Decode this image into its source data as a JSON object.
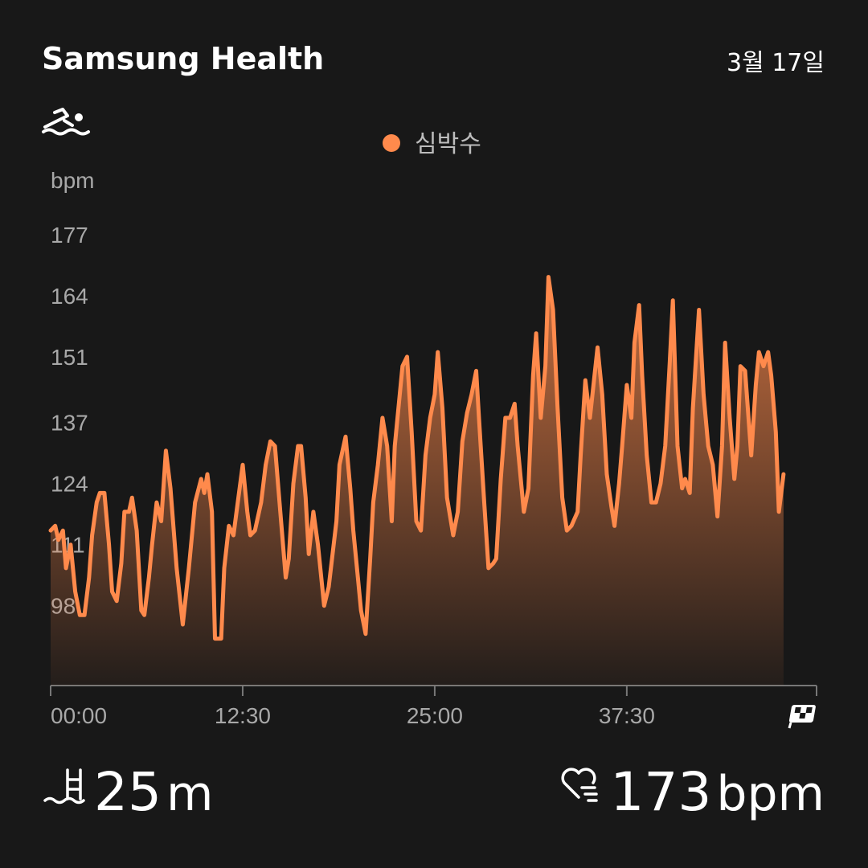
{
  "header": {
    "title": "Samsung Health",
    "date": "3월 17일"
  },
  "chart_data": {
    "type": "line",
    "ylabel": "bpm",
    "x": [
      0.0,
      0.3,
      0.5,
      0.8,
      1.0,
      1.3,
      1.6,
      1.9,
      2.2,
      2.5,
      2.7,
      3.0,
      3.2,
      3.5,
      3.8,
      4.0,
      4.3,
      4.6,
      4.8,
      5.1,
      5.3,
      5.6,
      5.9,
      6.1,
      6.4,
      6.6,
      6.9,
      7.2,
      7.5,
      7.8,
      8.2,
      8.6,
      9.0,
      9.4,
      9.8,
      10.0,
      10.2,
      10.5,
      10.7,
      11.1,
      11.3,
      11.6,
      11.9,
      12.1,
      12.5,
      12.8,
      13.0,
      13.3,
      13.7,
      14.0,
      14.3,
      14.6,
      14.9,
      15.3,
      15.5,
      15.8,
      16.1,
      16.3,
      16.6,
      16.8,
      17.1,
      17.4,
      17.8,
      18.1,
      18.6,
      18.8,
      19.2,
      19.5,
      19.7,
      20.0,
      20.2,
      20.5,
      20.8,
      21.0,
      21.3,
      21.6,
      21.9,
      22.2,
      22.4,
      22.9,
      23.2,
      23.5,
      23.8,
      24.1,
      24.4,
      24.7,
      25.0,
      25.2,
      25.5,
      25.8,
      26.2,
      26.5,
      26.8,
      27.1,
      27.4,
      27.7,
      27.9,
      28.2,
      28.5,
      28.8,
      29.0,
      29.3,
      29.6,
      29.9,
      30.2,
      30.4,
      30.8,
      31.1,
      31.4,
      31.6,
      31.9,
      32.2,
      32.4,
      32.7,
      33.0,
      33.3,
      33.6,
      33.9,
      34.3,
      34.5,
      34.8,
      35.1,
      35.4,
      35.6,
      35.9,
      36.2,
      36.5,
      36.7,
      37.0,
      37.2,
      37.5,
      37.8,
      38.0,
      38.3,
      38.5,
      38.8,
      39.1,
      39.4,
      39.7,
      40.0,
      40.3,
      40.5,
      40.8,
      41.1,
      41.3,
      41.6,
      41.8,
      42.2,
      42.5,
      42.8,
      43.1,
      43.4,
      43.7,
      43.9,
      44.2,
      44.5,
      44.7,
      44.9,
      45.2,
      45.6,
      45.9,
      46.1,
      46.4,
      46.7,
      46.9,
      47.2,
      47.4,
      47.7
    ],
    "series": [
      {
        "name": "심박수",
        "color": "#ff8a4c",
        "values": [
          114,
          115,
          112,
          114,
          106,
          111,
          101,
          96,
          96,
          104,
          113,
          120,
          122,
          122,
          111,
          101,
          99,
          107,
          118,
          118,
          121,
          114,
          97,
          96,
          104,
          111,
          120,
          116,
          131,
          123,
          106,
          94,
          106,
          120,
          125,
          122,
          126,
          118,
          91,
          91,
          106,
          115,
          113,
          118,
          128,
          118,
          113,
          114,
          120,
          128,
          133,
          132,
          120,
          104,
          108,
          124,
          132,
          132,
          121,
          109,
          118,
          111,
          98,
          102,
          116,
          128,
          134,
          123,
          114,
          104,
          97,
          92,
          108,
          120,
          128,
          138,
          132,
          116,
          132,
          149,
          151,
          135,
          116,
          114,
          130,
          138,
          143,
          152,
          140,
          121,
          113,
          118,
          133,
          139,
          143,
          148,
          137,
          121,
          106,
          107,
          108,
          125,
          138,
          138,
          141,
          132,
          118,
          123,
          147,
          156,
          138,
          149,
          168,
          161,
          140,
          121,
          114,
          115,
          118,
          130,
          146,
          138,
          147,
          153,
          143,
          126,
          119,
          115,
          124,
          132,
          145,
          138,
          154,
          162,
          147,
          130,
          120,
          120,
          124,
          132,
          150,
          163,
          132,
          123,
          125,
          122,
          140,
          161,
          143,
          132,
          128,
          117,
          132,
          154,
          138,
          125,
          132,
          149,
          148,
          130,
          145,
          152,
          149,
          152,
          147,
          135,
          118,
          126
        ]
      }
    ],
    "xlim": [
      0,
      49.8
    ],
    "ylim": [
      81,
      190
    ],
    "xticks": [
      {
        "value": 0,
        "label": "00:00"
      },
      {
        "value": 12.5,
        "label": "12:30"
      },
      {
        "value": 25,
        "label": "25:00"
      },
      {
        "value": 37.5,
        "label": "37:30"
      }
    ],
    "yticks": [
      98,
      111,
      124,
      137,
      151,
      164,
      177
    ]
  },
  "stats": [
    {
      "value": "25",
      "unit": "m"
    },
    {
      "value": "173",
      "unit": "bpm"
    }
  ]
}
